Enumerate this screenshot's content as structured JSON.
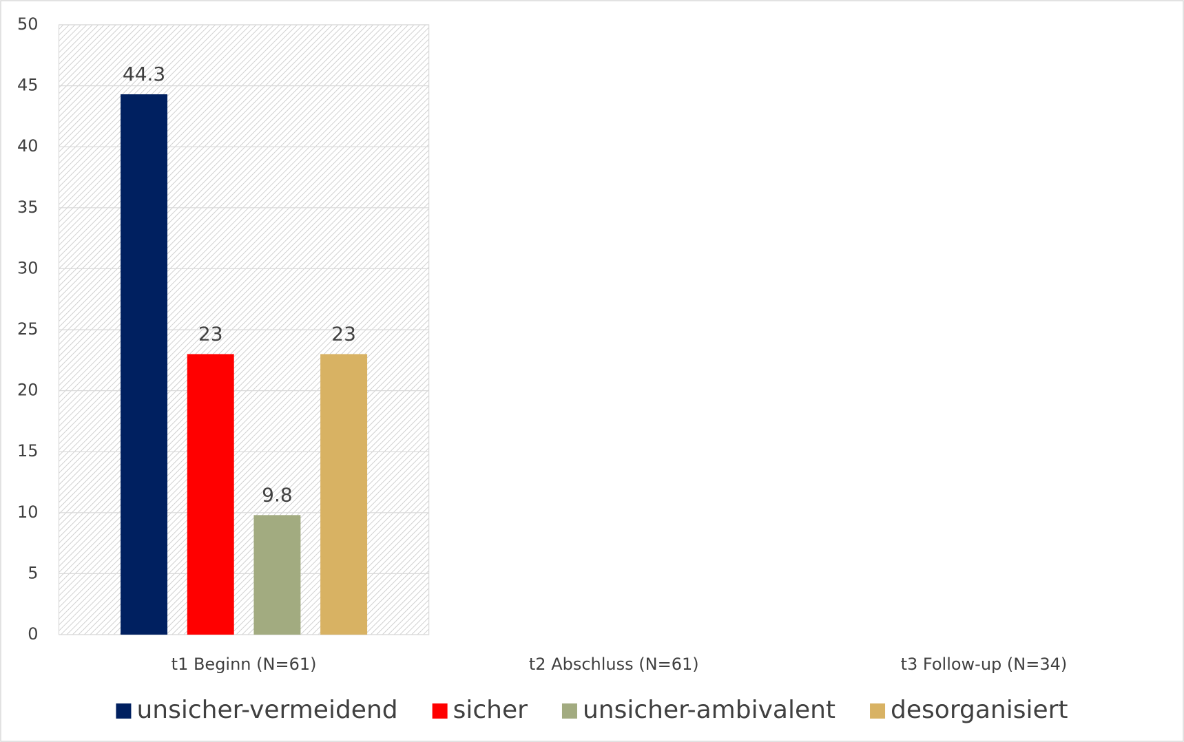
{
  "chart_data": {
    "type": "bar",
    "categories": [
      "t1 Beginn (N=61)",
      "t2 Abschluss (N=61)",
      "t3 Follow-up (N=34)"
    ],
    "series": [
      {
        "name": "unsicher-vermeidend",
        "color": "#002060",
        "values": [
          44.3,
          null,
          null
        ]
      },
      {
        "name": "sicher",
        "color": "#ff0000",
        "values": [
          23,
          null,
          null
        ]
      },
      {
        "name": "unsicher-ambivalent",
        "color": "#a2ab80",
        "values": [
          9.8,
          null,
          null
        ]
      },
      {
        "name": "desorganisiert",
        "color": "#d8b263",
        "values": [
          23,
          null,
          null
        ]
      }
    ],
    "ylim": [
      0,
      50
    ],
    "yticks": [
      0,
      5,
      10,
      15,
      20,
      25,
      30,
      35,
      40,
      45,
      50
    ],
    "grid": true,
    "legend": "bottom"
  }
}
